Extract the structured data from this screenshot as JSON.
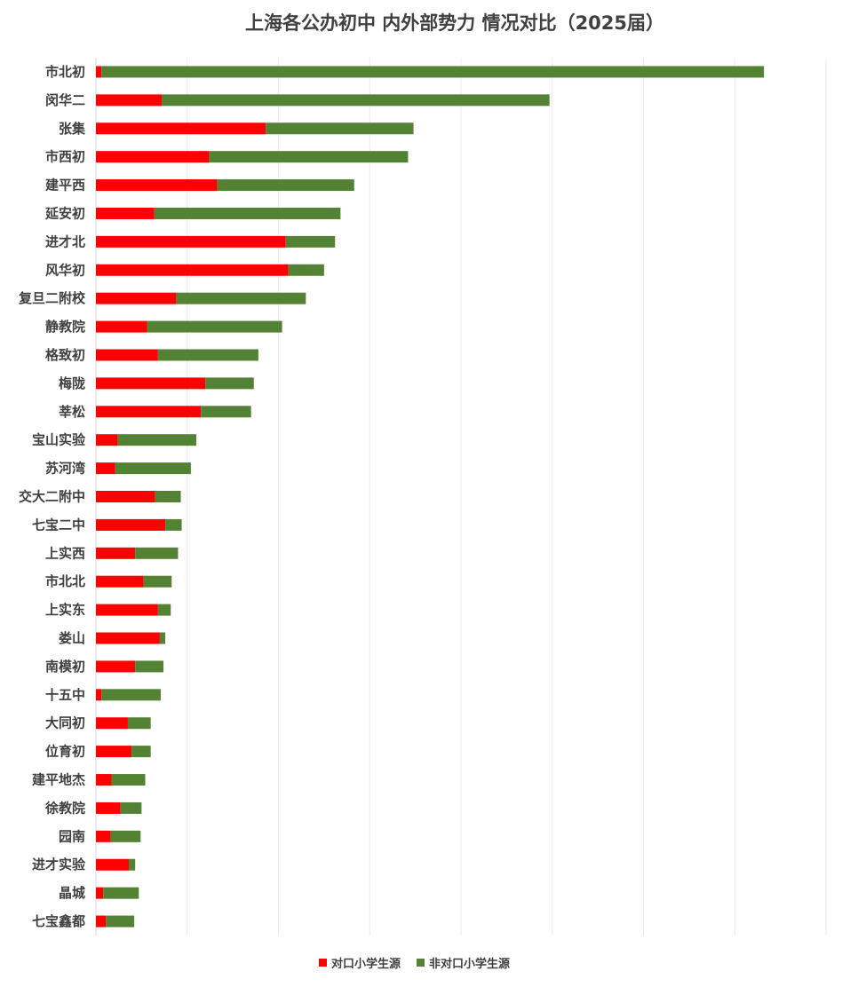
{
  "chart_data": {
    "type": "bar",
    "orientation": "horizontal",
    "stacked": true,
    "title": "上海各公办初中 内外部势力 情况对比（2025届）",
    "xlabel": "",
    "ylabel": "",
    "xlim": [
      0,
      800
    ],
    "grid": "vertical",
    "legend": "bottom",
    "categories": [
      "市北初",
      "闵华二",
      "张集",
      "市西初",
      "建平西",
      "延安初",
      "进才北",
      "风华初",
      "复旦二附校",
      "静教院",
      "格致初",
      "梅陇",
      "莘松",
      "宝山实验",
      "苏河湾",
      "交大二附中",
      "七宝二中",
      "上实西",
      "市北北",
      "上实东",
      "娄山",
      "南模初",
      "十五中",
      "大同初",
      "位育初",
      "建平地杰",
      "徐教院",
      "园南",
      "进才实验",
      "晶城",
      "七宝鑫都"
    ],
    "series": [
      {
        "name": "对口小学生源",
        "color": "#ff0000",
        "values": [
          6,
          72,
          186,
          124,
          133,
          64,
          208,
          211,
          88,
          56,
          68,
          120,
          115,
          24,
          21,
          65,
          76,
          43,
          52,
          68,
          70,
          43,
          6,
          35,
          39,
          17,
          27,
          16,
          36,
          8,
          11
        ]
      },
      {
        "name": "非对口小学生源",
        "color": "#548235",
        "values": [
          726,
          425,
          162,
          218,
          150,
          204,
          54,
          39,
          142,
          148,
          110,
          53,
          55,
          86,
          83,
          28,
          18,
          47,
          31,
          14,
          6,
          31,
          65,
          25,
          21,
          37,
          23,
          33,
          7,
          39,
          31
        ]
      }
    ]
  }
}
